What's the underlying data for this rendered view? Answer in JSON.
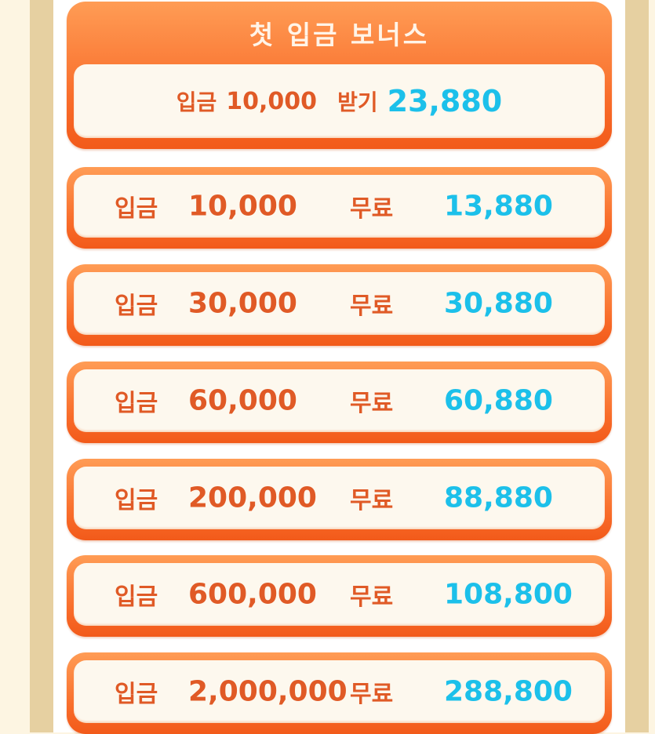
{
  "header": {
    "title": "첫 입금 보너스",
    "deposit_label": "입금",
    "deposit_amount": "10,000",
    "receive_label": "받기",
    "receive_amount": "23,880"
  },
  "rows": [
    {
      "deposit_label": "입금",
      "deposit": "10,000",
      "free_label": "무료",
      "free": "13,880"
    },
    {
      "deposit_label": "입금",
      "deposit": "30,000",
      "free_label": "무료",
      "free": "30,880"
    },
    {
      "deposit_label": "입금",
      "deposit": "60,000",
      "free_label": "무료",
      "free": "60,880"
    },
    {
      "deposit_label": "입금",
      "deposit": "200,000",
      "free_label": "무료",
      "free": "88,880"
    },
    {
      "deposit_label": "입금",
      "deposit": "600,000",
      "free_label": "무료",
      "free": "108,800"
    },
    {
      "deposit_label": "입금",
      "deposit": "2,000,000",
      "free_label": "무료",
      "free": "288,800"
    }
  ],
  "colors": {
    "accent_orange": "#f86a28",
    "deposit_text": "#e05a26",
    "bonus_text": "#1cc0ea",
    "frame": "#e6d0a1",
    "background": "#fdf5e2"
  }
}
